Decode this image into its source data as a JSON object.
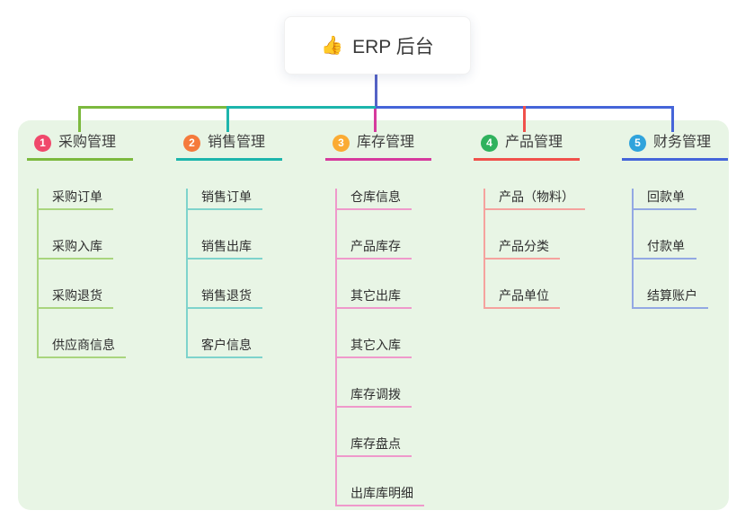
{
  "root": {
    "label": "ERP 后台",
    "emoji": "👍",
    "icon": "thumbs-up-icon"
  },
  "colors": {
    "panel_background": "#e8f5e5",
    "root_connector": "#5563c6"
  },
  "branches": [
    {
      "index": "1",
      "label": "采购管理",
      "badge_color": "#f0486b",
      "line_color": "#7cb93e",
      "child_line_color": "#a9d57e",
      "children": [
        "采购订单",
        "采购入库",
        "采购退货",
        "供应商信息"
      ]
    },
    {
      "index": "2",
      "label": "销售管理",
      "badge_color": "#f57a3c",
      "line_color": "#1db5ac",
      "child_line_color": "#7ed3cc",
      "children": [
        "销售订单",
        "销售出库",
        "销售退货",
        "客户信息"
      ]
    },
    {
      "index": "3",
      "label": "库存管理",
      "badge_color": "#fbab33",
      "line_color": "#d63a9d",
      "child_line_color": "#ef99cb",
      "children": [
        "仓库信息",
        "产品库存",
        "其它出库",
        "其它入库",
        "库存调拨",
        "库存盘点",
        "出库库明细"
      ]
    },
    {
      "index": "4",
      "label": "产品管理",
      "badge_color": "#2fb25d",
      "line_color": "#f0514b",
      "child_line_color": "#f5a29e",
      "children": [
        "产品（物料）",
        "产品分类",
        "产品单位"
      ]
    },
    {
      "index": "5",
      "label": "财务管理",
      "badge_color": "#2fa3dc",
      "line_color": "#4565d9",
      "child_line_color": "#93a8e3",
      "children": [
        "回款单",
        "付款单",
        "结算账户"
      ]
    }
  ]
}
